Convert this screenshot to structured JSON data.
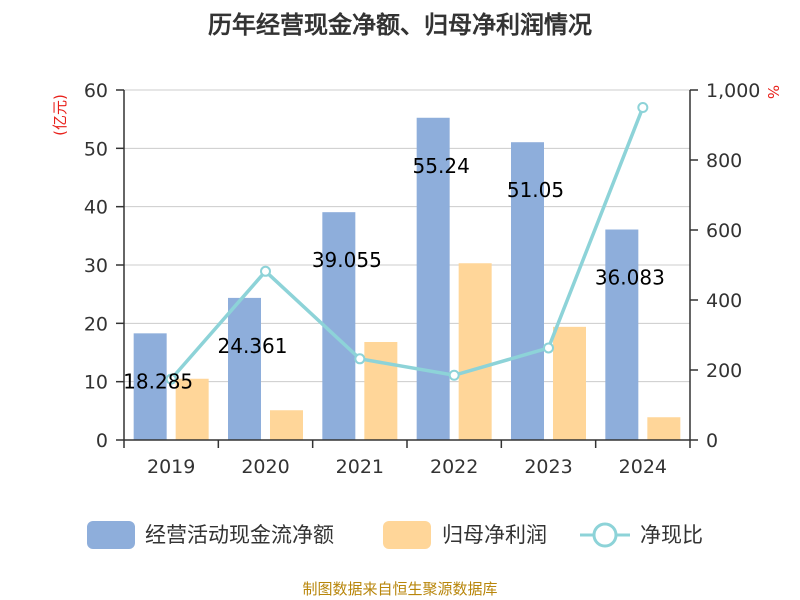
{
  "chart_data": {
    "type": "bar",
    "title": "历年经营现金净额、归母净利润情况",
    "categories": [
      "2019",
      "2020",
      "2021",
      "2022",
      "2023",
      "2024"
    ],
    "series": [
      {
        "name": "经营活动现金流净额",
        "axis": "left",
        "kind": "bar",
        "color": "#8eaedb",
        "values": [
          18.285,
          24.361,
          39.055,
          55.24,
          51.05,
          36.083
        ],
        "labels": [
          "18.285",
          "24.361",
          "39.055",
          "55.24",
          "51.05",
          "36.083"
        ]
      },
      {
        "name": "归母净利润",
        "axis": "left",
        "kind": "bar",
        "color": "#ffd699",
        "values": [
          10.5,
          5.1,
          16.8,
          30.3,
          19.4,
          3.9
        ]
      },
      {
        "name": "净现比",
        "axis": "right",
        "kind": "line",
        "color": "#8dd3d8",
        "values": [
          174,
          482,
          232,
          185,
          263,
          950
        ]
      }
    ],
    "y_left": {
      "unit": "(亿元)",
      "ylim": [
        0,
        60
      ],
      "ticks": [
        0,
        10,
        20,
        30,
        40,
        50,
        60
      ],
      "tick_labels": [
        "0",
        "10",
        "20",
        "30",
        "40",
        "50",
        "60"
      ]
    },
    "y_right": {
      "unit": "%",
      "ylim": [
        0,
        1000
      ],
      "ticks": [
        0,
        200,
        400,
        600,
        800,
        1000
      ],
      "tick_labels": [
        "0",
        "200",
        "400",
        "600",
        "800",
        "1,000"
      ]
    },
    "grid": true,
    "legend": "bottom",
    "source": "制图数据来自恒生聚源数据库"
  }
}
